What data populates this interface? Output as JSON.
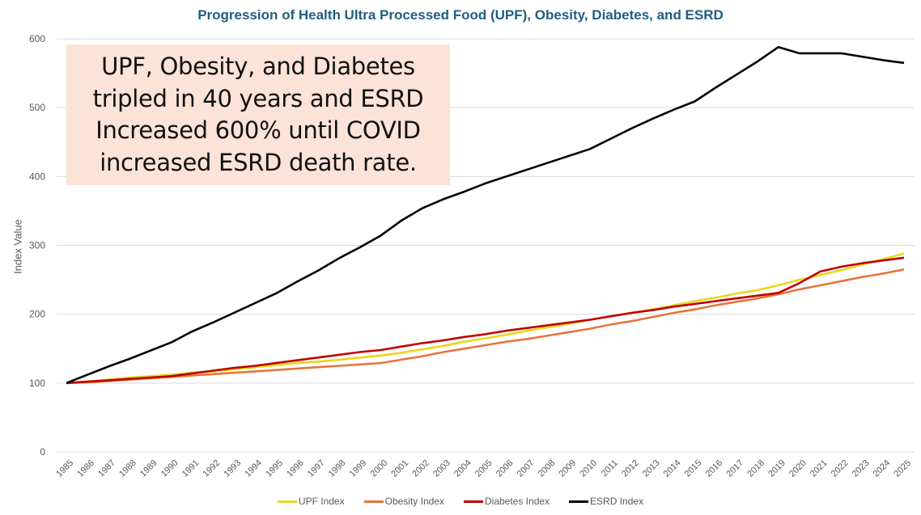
{
  "chart_data": {
    "type": "line",
    "title": "Progression of Health Ultra Processed Food (UPF), Obesity, Diabetes, and ESRD",
    "xlabel": "",
    "ylabel": "Index Value",
    "ylim": [
      0,
      600
    ],
    "yticks": [
      0,
      100,
      200,
      300,
      400,
      500,
      600
    ],
    "grid": true,
    "legend_position": "bottom",
    "x": [
      "1985",
      "1986",
      "1987",
      "1988",
      "1989",
      "1990",
      "1991",
      "1992",
      "1993",
      "1994",
      "1995",
      "1996",
      "1997",
      "1998",
      "1999",
      "2000",
      "2001",
      "2002",
      "2003",
      "2004",
      "2005",
      "2006",
      "2007",
      "2008",
      "2009",
      "2010",
      "2011",
      "2012",
      "2013",
      "2014",
      "2015",
      "2016",
      "2017",
      "2018",
      "2019",
      "2020",
      "2021",
      "2022",
      "2023",
      "2024",
      "2025"
    ],
    "series": [
      {
        "name": "UPF Index",
        "color": "#e6d81c",
        "values": [
          100,
          102,
          105,
          108,
          110,
          112,
          115,
          117,
          120,
          123,
          126,
          129,
          131,
          134,
          137,
          140,
          144,
          149,
          154,
          160,
          165,
          170,
          176,
          181,
          186,
          192,
          197,
          202,
          207,
          213,
          219,
          224,
          230,
          235,
          242,
          250,
          257,
          264,
          272,
          280,
          288
        ]
      },
      {
        "name": "Obesity Index",
        "color": "#e8743b",
        "values": [
          100,
          101,
          103,
          105,
          107,
          109,
          111,
          113,
          115,
          117,
          119,
          121,
          123,
          125,
          127,
          129,
          134,
          139,
          145,
          150,
          155,
          160,
          164,
          169,
          174,
          179,
          185,
          190,
          196,
          202,
          207,
          213,
          218,
          223,
          229,
          236,
          242,
          248,
          254,
          259,
          265
        ]
      },
      {
        "name": "Diabetes Index",
        "color": "#c00000",
        "values": [
          100,
          102,
          104,
          106,
          108,
          110,
          114,
          118,
          122,
          125,
          129,
          133,
          137,
          141,
          145,
          148,
          153,
          158,
          162,
          167,
          171,
          176,
          180,
          184,
          188,
          192,
          197,
          202,
          206,
          211,
          215,
          219,
          223,
          227,
          231,
          245,
          262,
          269,
          274,
          278,
          282
        ]
      },
      {
        "name": "ESRD Index",
        "color": "#000000",
        "values": [
          100,
          112,
          124,
          135,
          147,
          159,
          175,
          188,
          202,
          216,
          230,
          247,
          263,
          281,
          297,
          314,
          336,
          354,
          367,
          378,
          390,
          400,
          410,
          420,
          430,
          440,
          455,
          470,
          484,
          497,
          509,
          529,
          548,
          567,
          588,
          579,
          579,
          579,
          574,
          569,
          565
        ]
      }
    ],
    "annotation": {
      "lines": [
        "UPF, Obesity, and Diabetes",
        "tripled in 40 years and ESRD",
        "Increased 600% until COVID",
        "increased ESRD death rate."
      ],
      "background": "#fbe3d8"
    }
  }
}
